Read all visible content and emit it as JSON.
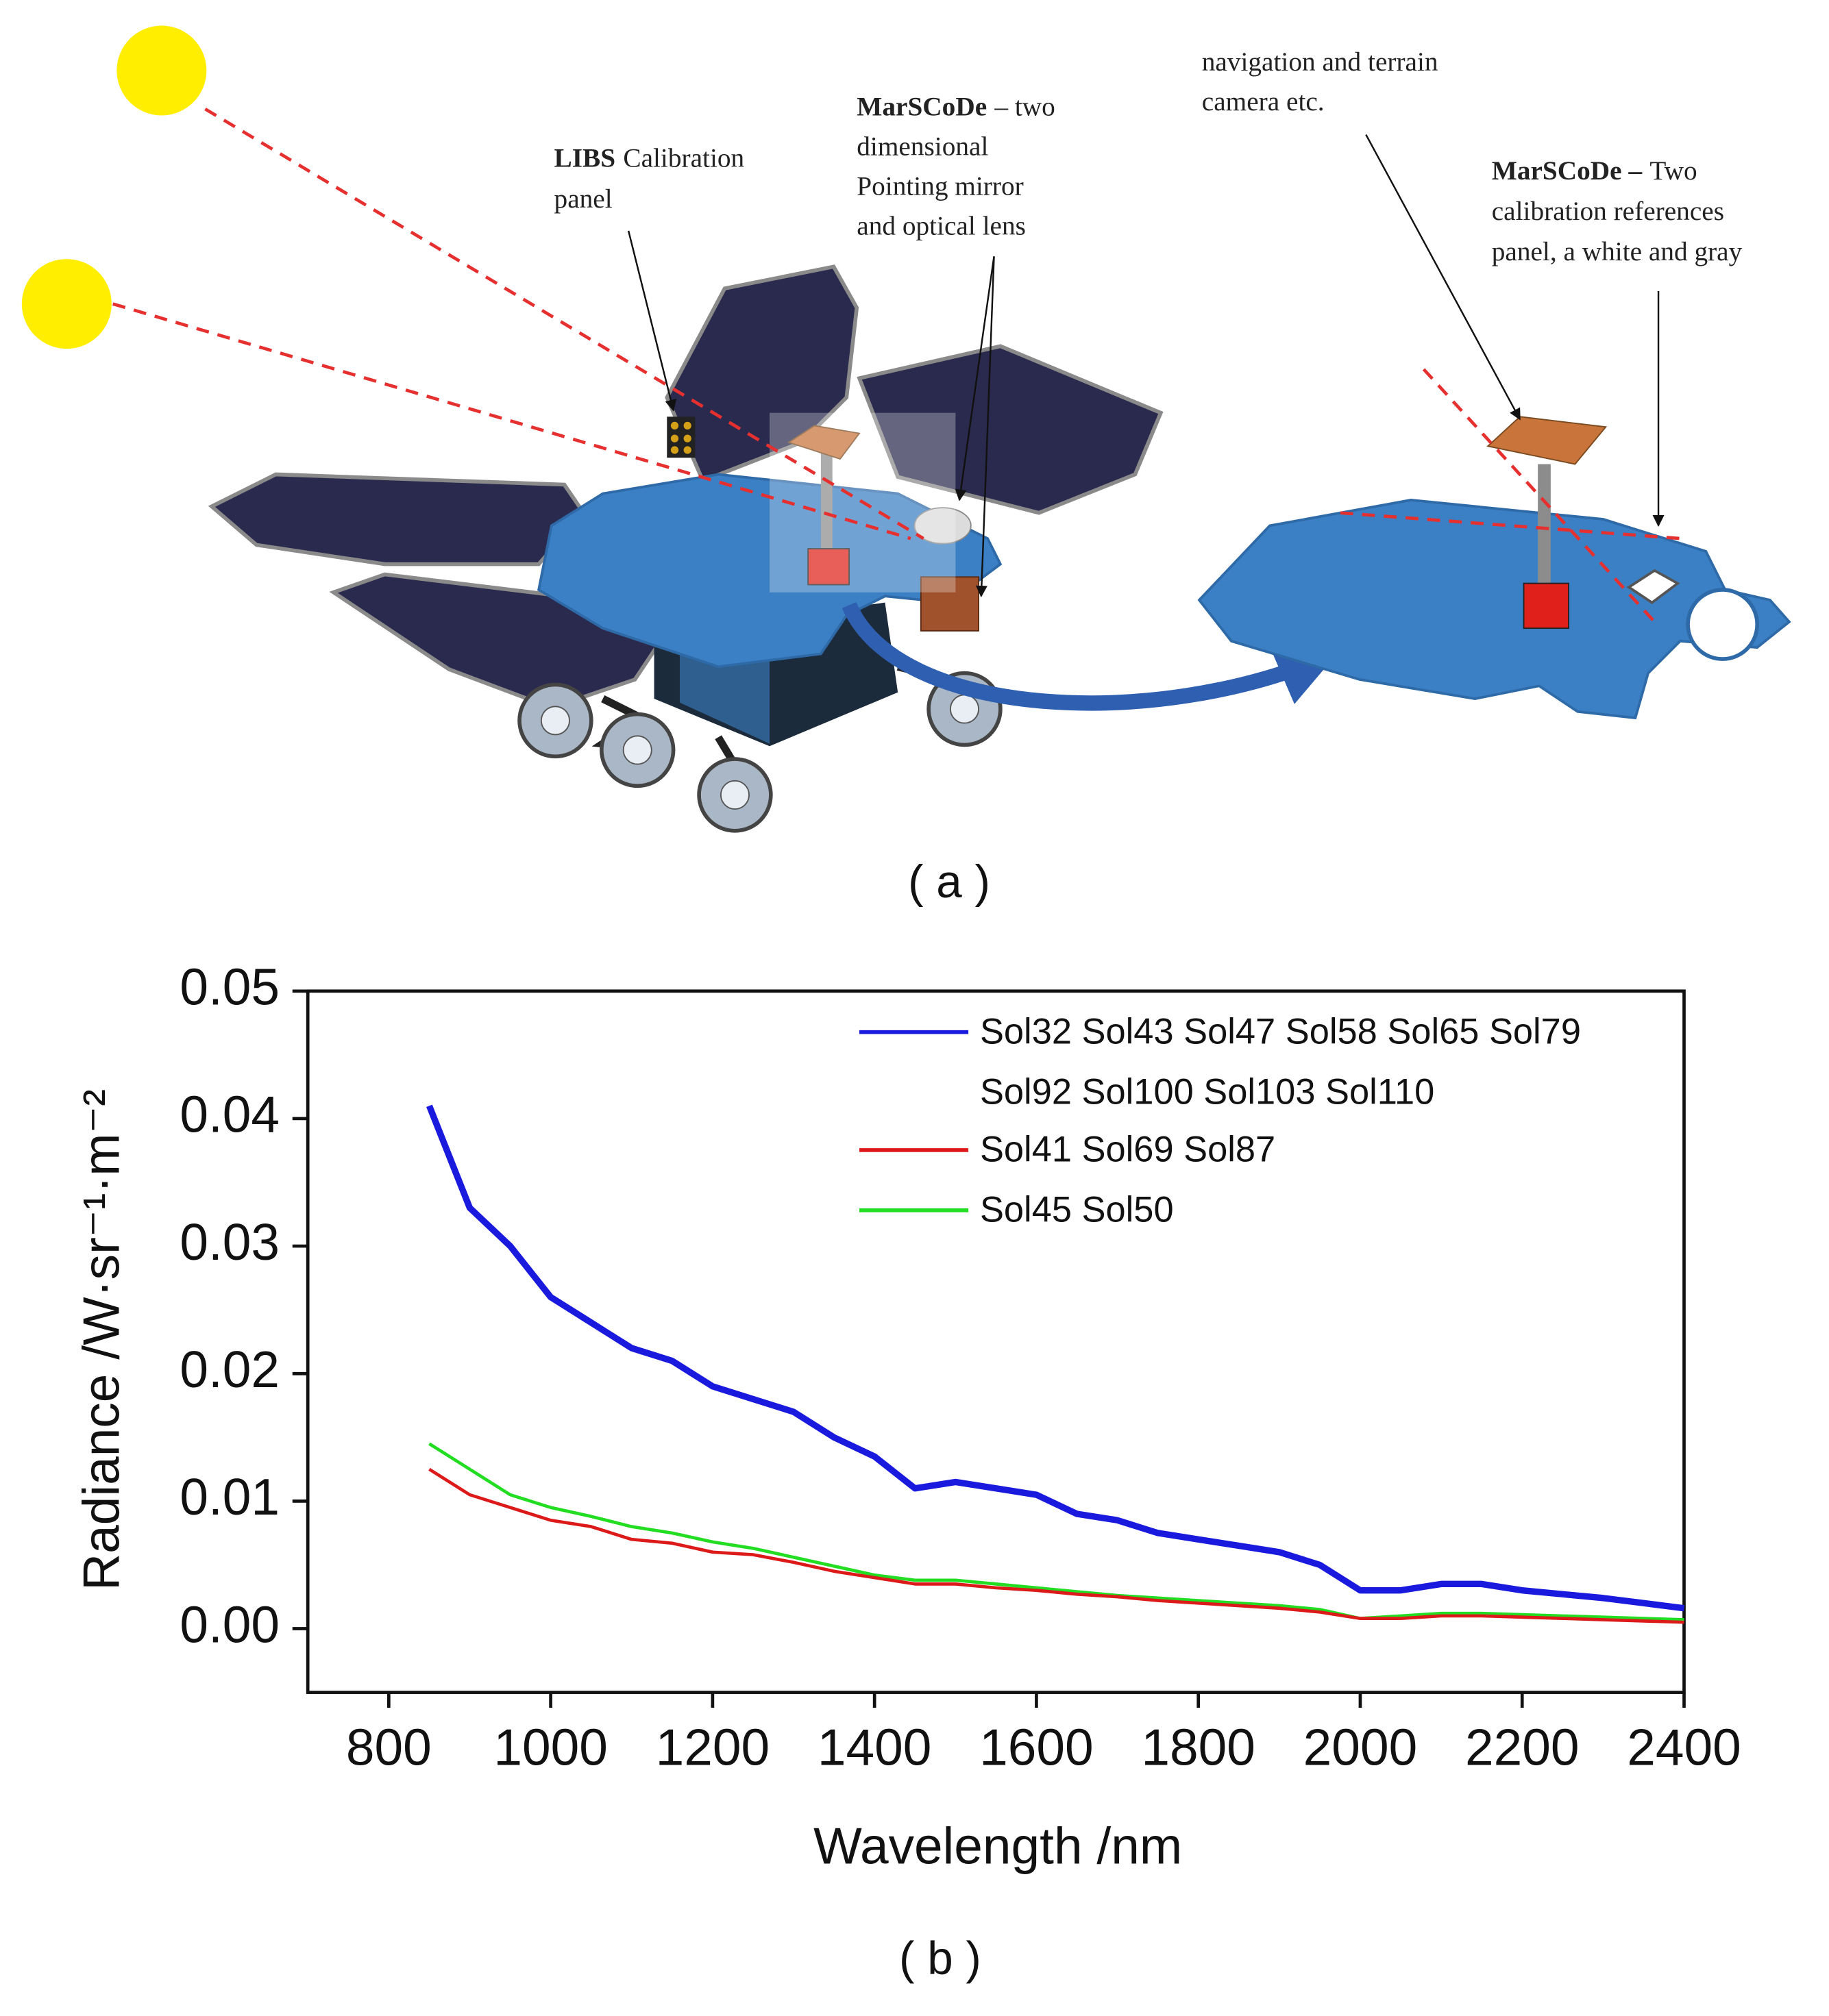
{
  "diagram": {
    "libs": {
      "bold": "LIBS",
      "lines": [
        "Calibration",
        "panel"
      ]
    },
    "marscode_mirror": {
      "bold": "MarSCoDe",
      "lines": [
        "– two",
        "dimensional",
        "Pointing mirror",
        "and optical lens"
      ]
    },
    "camera": {
      "lines": [
        "navigation and terrain",
        "camera etc."
      ]
    },
    "marscode_panel": {
      "bold": "MarSCoDe –",
      "lines": [
        "Two",
        "calibration references",
        "panel, a white and gray"
      ]
    },
    "caption": "( a )"
  },
  "chart_data": {
    "type": "line",
    "caption": "( b )",
    "xlabel": "Wavelength /nm",
    "ylabel": "Radiance /W·sr⁻¹·m⁻²",
    "xlim": [
      700,
      2400
    ],
    "ylim": [
      -0.005,
      0.05
    ],
    "xticks": [
      800,
      1000,
      1200,
      1400,
      1600,
      1800,
      2000,
      2200,
      2400
    ],
    "yticks": [
      {
        "value": 0,
        "label": "0.00"
      },
      0.01,
      0.02,
      0.03,
      0.04,
      0.05
    ],
    "x": [
      850,
      900,
      950,
      1000,
      1050,
      1100,
      1150,
      1200,
      1250,
      1300,
      1350,
      1400,
      1450,
      1500,
      1550,
      1600,
      1650,
      1700,
      1750,
      1800,
      1850,
      1900,
      1950,
      2000,
      2050,
      2100,
      2150,
      2200,
      2250,
      2300,
      2350,
      2400
    ],
    "series": [
      {
        "name": "Sol32 Sol43 Sol47 Sol58 Sol65 Sol79 Sol92 Sol100 Sol103 Sol110",
        "color": "#1a1adf",
        "values": [
          0.041,
          0.033,
          0.03,
          0.026,
          0.024,
          0.022,
          0.021,
          0.019,
          0.018,
          0.017,
          0.015,
          0.0135,
          0.011,
          0.0115,
          0.011,
          0.0105,
          0.009,
          0.0085,
          0.0075,
          0.007,
          0.0065,
          0.006,
          0.005,
          0.003,
          0.003,
          0.0035,
          0.0035,
          0.003,
          0.0027,
          0.0024,
          0.002,
          0.0016
        ]
      },
      {
        "name": "Sol41 Sol69 Sol87",
        "color": "#dd1a1a",
        "values": [
          0.0125,
          0.0105,
          0.0095,
          0.0085,
          0.008,
          0.007,
          0.0067,
          0.006,
          0.0058,
          0.0052,
          0.0045,
          0.004,
          0.0035,
          0.0035,
          0.0032,
          0.003,
          0.0027,
          0.0025,
          0.0022,
          0.002,
          0.0018,
          0.0016,
          0.0013,
          0.0008,
          0.0008,
          0.001,
          0.001,
          0.0009,
          0.0008,
          0.0007,
          0.0006,
          0.0005
        ]
      },
      {
        "name": "Sol45 Sol50",
        "color": "#22dd22",
        "values": [
          0.0145,
          0.0125,
          0.0105,
          0.0095,
          0.0088,
          0.008,
          0.0075,
          0.0068,
          0.0063,
          0.0056,
          0.0049,
          0.0042,
          0.0038,
          0.0038,
          0.0035,
          0.0032,
          0.0029,
          0.0026,
          0.0024,
          0.0022,
          0.002,
          0.0018,
          0.0015,
          0.0008,
          0.001,
          0.0012,
          0.0012,
          0.0011,
          0.001,
          0.0009,
          0.0008,
          0.0007
        ]
      }
    ]
  }
}
